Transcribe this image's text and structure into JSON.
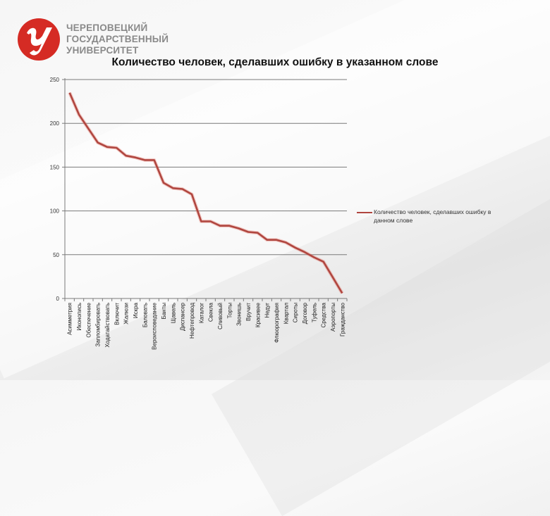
{
  "logo": {
    "icon": "chsu-logo-icon",
    "lines": [
      "ЧЕРЕПОВЕЦКИЙ",
      "ГОСУДАРСТВЕННЫЙ",
      "УНИВЕРСИТЕТ"
    ],
    "color": "#d52b24"
  },
  "chart_data": {
    "type": "line",
    "title": "Количество человек, сделавших ошибку в указанном слове",
    "xlabel": "",
    "ylabel": "",
    "ylim": [
      0,
      250
    ],
    "yticks": [
      0,
      50,
      100,
      150,
      200,
      250
    ],
    "grid": true,
    "legend_position": "right",
    "categories": [
      "Асимметрия",
      "Иконопись",
      "Обеспечение",
      "Запломбировать",
      "Ходатайствовать",
      "Включит",
      "Жалюзи",
      "Искра",
      "Баловать",
      "Вероисповедание",
      "Банты",
      "Щавель",
      "Диспансер",
      "Нефтепровод",
      "Каталог",
      "Свекла",
      "Сливовый",
      "Торты",
      "Звонишь",
      "Вручит",
      "Красивее",
      "Недуг",
      "Флюорография",
      "Квартал",
      "Сироты",
      "Договор",
      "Туфель",
      "Средства",
      "Аэропорты",
      "Гражданство"
    ],
    "series": [
      {
        "name": "Количество человек, сделавших ошибку в данном слове",
        "color": "#b0463f",
        "values": [
          235,
          210,
          194,
          178,
          173,
          172,
          163,
          161,
          158,
          158,
          132,
          126,
          125,
          119,
          88,
          88,
          83,
          83,
          80,
          76,
          75,
          67,
          67,
          64,
          58,
          53,
          47,
          42,
          24,
          6
        ]
      }
    ]
  }
}
